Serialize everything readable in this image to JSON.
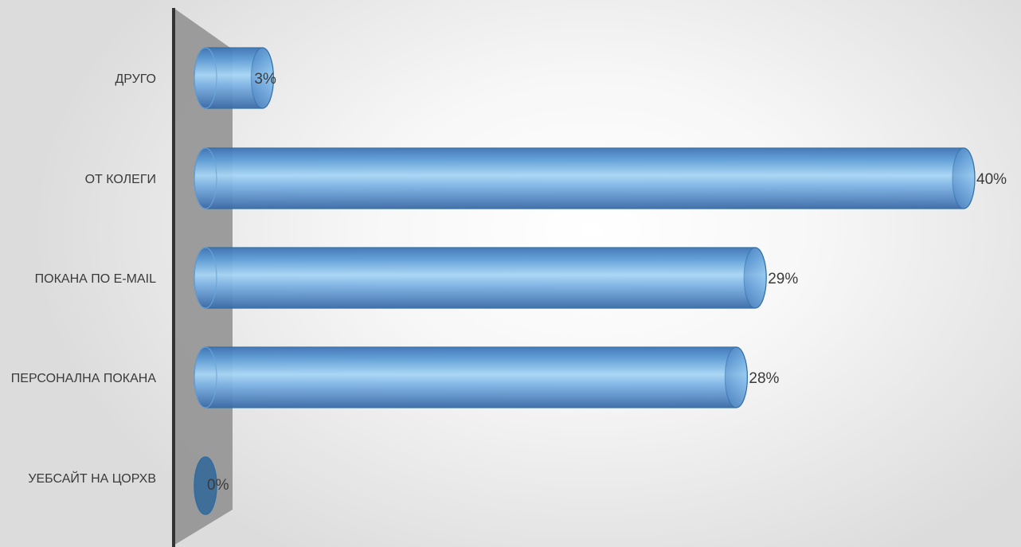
{
  "chart_data": {
    "type": "bar",
    "orientation": "horizontal",
    "style": "3d-cylinder",
    "categories": [
      "ДРУГО",
      "ОТ КОЛЕГИ",
      "ПОКАНА ПО E-MAIL",
      "ПЕРСОНАЛНА ПОКАНА",
      "УЕБСАЙТ НА ЦОРХВ"
    ],
    "values": [
      3,
      40,
      29,
      28,
      0
    ],
    "value_labels": [
      "3%",
      "40%",
      "29%",
      "28%",
      "0%"
    ],
    "unit": "%",
    "xlim": [
      0,
      40
    ],
    "grid": false,
    "legend": "none",
    "colors": {
      "bar_fill": "#5b9bd5",
      "bar_highlight": "#a7d6f5",
      "bar_edge": "#2e6da4",
      "back_wall": "#8e8e8e",
      "axis_line": "#333333"
    }
  }
}
